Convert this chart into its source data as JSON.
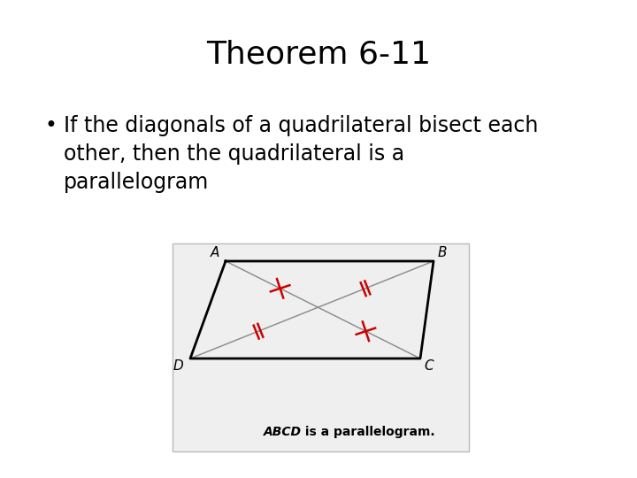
{
  "title": "Theorem 6-11",
  "title_fontsize": 26,
  "bullet_text_line1": "If the diagonals of a quadrilateral bisect each",
  "bullet_text_line2": "other, then the quadrilateral is a",
  "bullet_text_line3": "parallelogram",
  "bullet_fontsize": 17,
  "background_color": "#ffffff",
  "diagram_bg": "#efefef",
  "diagram_caption_italic": "ABCD",
  "diagram_caption_rest": " is a parallelogram.",
  "caption_fontsize": 10,
  "tick_color": "#cc0000",
  "line_color": "#000000",
  "diag_line_color": "#888888"
}
